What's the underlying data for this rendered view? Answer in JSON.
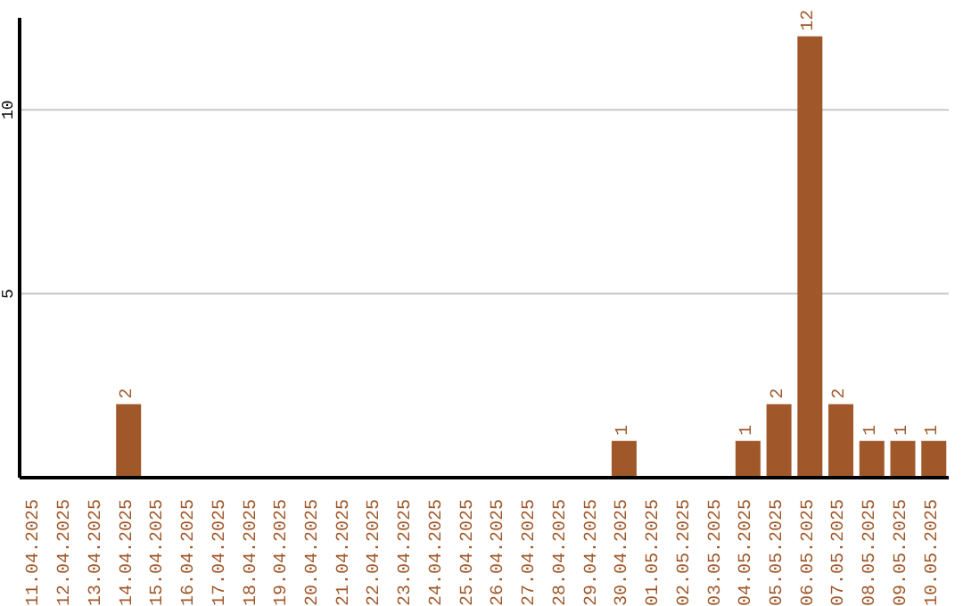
{
  "chart_data": {
    "type": "bar",
    "categories": [
      "11.04.2025",
      "12.04.2025",
      "13.04.2025",
      "14.04.2025",
      "15.04.2025",
      "16.04.2025",
      "17.04.2025",
      "18.04.2025",
      "19.04.2025",
      "20.04.2025",
      "21.04.2025",
      "22.04.2025",
      "23.04.2025",
      "24.04.2025",
      "25.04.2025",
      "26.04.2025",
      "27.04.2025",
      "28.04.2025",
      "29.04.2025",
      "30.04.2025",
      "01.05.2025",
      "02.05.2025",
      "03.05.2025",
      "04.05.2025",
      "05.05.2025",
      "06.05.2025",
      "07.05.2025",
      "08.05.2025",
      "09.05.2025",
      "10.05.2025"
    ],
    "values": [
      0,
      0,
      0,
      2,
      0,
      0,
      0,
      0,
      0,
      0,
      0,
      0,
      0,
      0,
      0,
      0,
      0,
      0,
      0,
      1,
      0,
      0,
      0,
      1,
      2,
      12,
      2,
      1,
      1,
      1
    ],
    "value_labels": [
      null,
      null,
      null,
      "2",
      null,
      null,
      null,
      null,
      null,
      null,
      null,
      null,
      null,
      null,
      null,
      null,
      null,
      null,
      null,
      "1",
      null,
      null,
      null,
      "1",
      "2",
      "12",
      "2",
      "1",
      "1",
      "1"
    ],
    "color": "#a0582a",
    "ylim": [
      0,
      12.5
    ],
    "yticks": [
      5,
      10
    ],
    "grid": "y"
  }
}
